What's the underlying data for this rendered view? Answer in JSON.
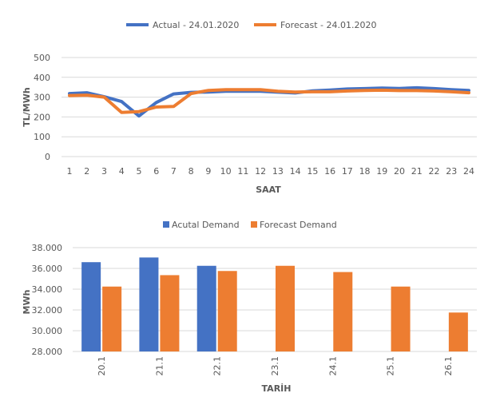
{
  "chart_data": [
    {
      "type": "line",
      "title": "",
      "xlabel": "SAAT",
      "ylabel": "TL/MWh",
      "ylim": [
        0,
        500
      ],
      "yticks": [
        "0",
        "100",
        "200",
        "300",
        "400",
        "500"
      ],
      "x": [
        "1",
        "2",
        "3",
        "4",
        "5",
        "6",
        "7",
        "8",
        "9",
        "10",
        "11",
        "12",
        "13",
        "14",
        "15",
        "16",
        "17",
        "18",
        "19",
        "20",
        "21",
        "22",
        "23",
        "24"
      ],
      "colors": {
        "actual": "#4472C4",
        "forecast": "#ED7D31"
      },
      "series": [
        {
          "name": "Actual - 24.01.2020",
          "values": [
            318,
            322,
            302,
            278,
            205,
            273,
            316,
            324,
            326,
            330,
            330,
            330,
            325,
            321,
            332,
            336,
            341,
            343,
            346,
            344,
            347,
            343,
            338,
            334
          ]
        },
        {
          "name": "Forecast - 24.01.2020",
          "values": [
            308,
            310,
            300,
            223,
            227,
            250,
            253,
            318,
            334,
            338,
            338,
            338,
            330,
            326,
            327,
            327,
            331,
            334,
            335,
            333,
            333,
            331,
            327,
            322
          ]
        }
      ]
    },
    {
      "type": "bar",
      "title": "",
      "xlabel": "TARİH",
      "ylabel": "MWh",
      "ylim": [
        28000,
        38000
      ],
      "yticks": [
        "28.000",
        "30.000",
        "32.000",
        "34.000",
        "36.000",
        "38.000"
      ],
      "categories": [
        "20.1",
        "21.1",
        "22.1",
        "23.1",
        "24.1",
        "25.1",
        "26.1"
      ],
      "colors": {
        "actual": "#4472C4",
        "forecast": "#ED7D31"
      },
      "series": [
        {
          "name": "Acutal Demand",
          "values": [
            36600,
            37050,
            36250,
            null,
            null,
            null,
            null
          ]
        },
        {
          "name": "Forecast Demand",
          "values": [
            34250,
            35350,
            35750,
            36250,
            35650,
            34250,
            31750
          ]
        }
      ]
    }
  ]
}
